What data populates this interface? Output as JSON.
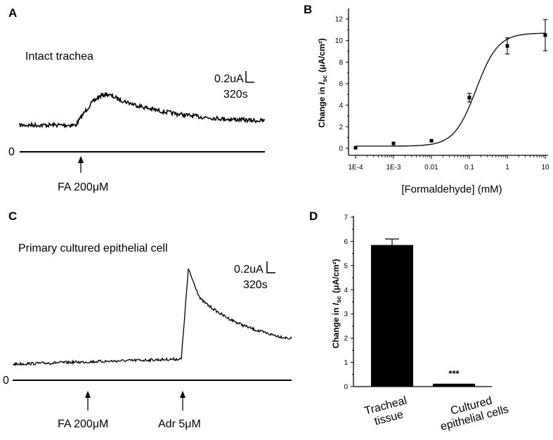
{
  "panels": {
    "A": {
      "letter": "A",
      "title": "Intact trachea",
      "scale_current": "0.2uA",
      "scale_time": "320s",
      "zero": "0",
      "stimulus": "FA 200μM"
    },
    "C": {
      "letter": "C",
      "title": "Primary cultured epithelial cell",
      "scale_current": "0.2uA",
      "scale_time": "320s",
      "zero": "0",
      "stimulus1": "FA 200μM",
      "stimulus2": "Adr 5μM"
    },
    "B": {
      "letter": "B"
    },
    "D": {
      "letter": "D"
    }
  },
  "chart_data": [
    {
      "panel": "B",
      "type": "scatter",
      "xscale": "log",
      "xlabel": "[Formaldehyde] (mM)",
      "ylabel_main": "Change in ",
      "ylabel_italic": "I",
      "ylabel_sub": "sc",
      "ylabel_unit": "(μA/cm²)",
      "xtick_labels": [
        "1E-4",
        "1E-3",
        "0.01",
        "0.1",
        "1",
        "10"
      ],
      "xtick_values": [
        0.0001,
        0.001,
        0.01,
        0.1,
        1,
        10
      ],
      "ytick_labels": [
        "0",
        "2",
        "4",
        "6",
        "8",
        "10",
        "12"
      ],
      "ylim": [
        0,
        12.5
      ],
      "x": [
        0.0001,
        0.001,
        0.01,
        0.1,
        1,
        10
      ],
      "y": [
        0.05,
        0.45,
        0.7,
        4.7,
        9.5,
        10.5
      ],
      "err": [
        0,
        0,
        0,
        0.4,
        0.75,
        1.45
      ],
      "fit": "sigmoidal"
    },
    {
      "panel": "D",
      "type": "bar",
      "ylabel_main": "Change in ",
      "ylabel_italic": "I",
      "ylabel_sub": "sc",
      "ylabel_unit": "(μA/cm²)",
      "categories": [
        [
          "Tracheal",
          "tissue"
        ],
        [
          "Cultured",
          "epithelial cells"
        ]
      ],
      "values": [
        5.85,
        0.12
      ],
      "err": [
        0.25,
        0
      ],
      "annotations": [
        "",
        "***"
      ],
      "ytick_labels": [
        "0",
        "1",
        "2",
        "3",
        "4",
        "5",
        "6",
        "7"
      ],
      "ylim": [
        0,
        7
      ]
    }
  ]
}
